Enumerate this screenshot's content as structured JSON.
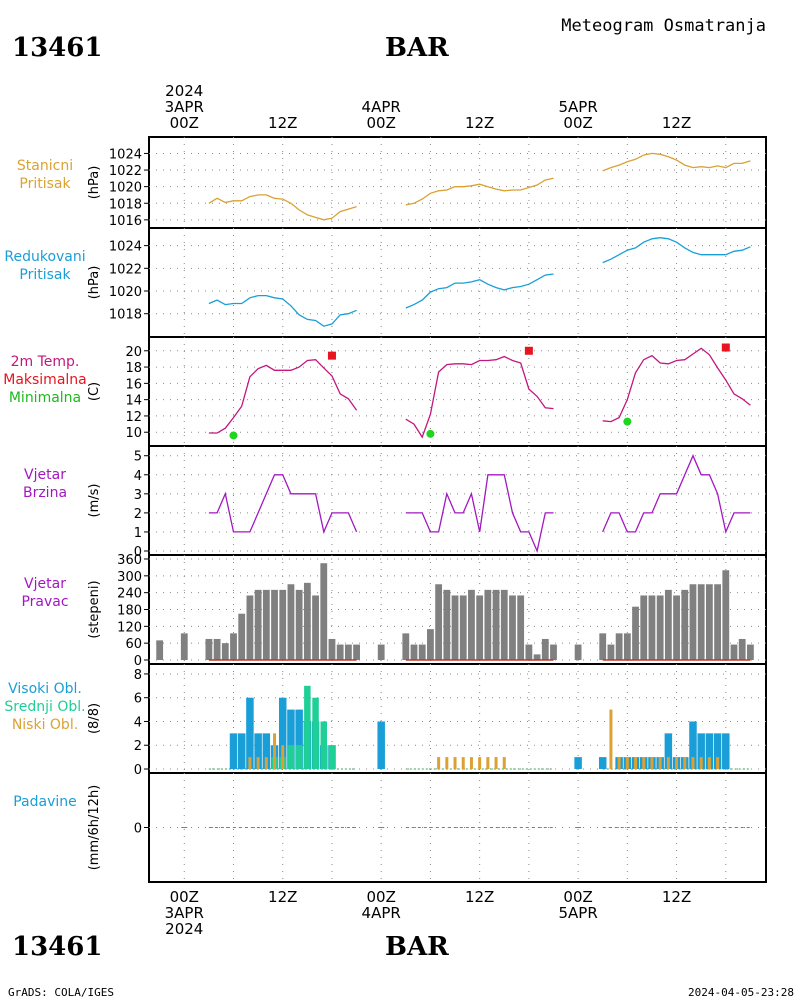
{
  "header": {
    "station_id": "13461",
    "station_name": "BAR",
    "product_title": "Meteogram Osmatranja",
    "footer_station_id": "13461",
    "footer_station_name": "BAR",
    "credit": "GrADS: COLA/IGES",
    "timestamp": "2024-04-05-23:28"
  },
  "colors": {
    "pressure_station": "#d9a233",
    "pressure_reduced": "#1a9ed8",
    "temp": "#c2177e",
    "temp_max": "#e8141f",
    "temp_min": "#1fd61f",
    "wind_speed": "#a317c2",
    "wind_dir": "#808080",
    "cloud_high": "#1a9ed8",
    "cloud_mid": "#1fcf96",
    "cloud_low": "#dca133",
    "precip": "#1a9ed8",
    "grid": "#8a8a8a"
  },
  "time_axis": {
    "top_labels": [
      {
        "t": 0,
        "lines": [
          "2024",
          "3APR",
          "00Z"
        ]
      },
      {
        "t": 12,
        "lines": [
          "12Z"
        ]
      },
      {
        "t": 24,
        "lines": [
          "4APR",
          "00Z"
        ]
      },
      {
        "t": 36,
        "lines": [
          "12Z"
        ]
      },
      {
        "t": 48,
        "lines": [
          "5APR",
          "00Z"
        ]
      },
      {
        "t": 60,
        "lines": [
          "12Z"
        ]
      }
    ],
    "bottom_labels": [
      {
        "t": 0,
        "lines": [
          "00Z",
          "3APR",
          "2024"
        ]
      },
      {
        "t": 12,
        "lines": [
          "12Z"
        ]
      },
      {
        "t": 24,
        "lines": [
          "00Z",
          "4APR"
        ]
      },
      {
        "t": 36,
        "lines": [
          "12Z"
        ]
      },
      {
        "t": 48,
        "lines": [
          "00Z",
          "5APR"
        ]
      },
      {
        "t": 60,
        "lines": [
          "12Z"
        ]
      }
    ]
  },
  "panels": [
    {
      "key": "station_pressure",
      "label": [
        "Stanicni",
        "Pritisak"
      ],
      "label_color": "#d9a233",
      "unit": "(hPa)"
    },
    {
      "key": "reduced_pressure",
      "label": [
        "Redukovani",
        "Pritisak"
      ],
      "label_color": "#1a9ed8",
      "unit": "(hPa)"
    },
    {
      "key": "temperature",
      "label": [
        "2m Temp.",
        "Maksimalna",
        "Minimalna"
      ],
      "label_colors": [
        "#c2177e",
        "#e8141f",
        "#1fb81f"
      ],
      "unit": "(C)"
    },
    {
      "key": "wind_speed",
      "label": [
        "Vjetar",
        "Brzina"
      ],
      "label_color": "#a317c2",
      "unit": "(m/s)"
    },
    {
      "key": "wind_direction",
      "label": [
        "Vjetar",
        "Pravac"
      ],
      "label_color": "#a317c2",
      "unit": "(stepeni)"
    },
    {
      "key": "clouds",
      "label": [
        "Visoki Obl.",
        "Srednji Obl.",
        "Niski Obl."
      ],
      "label_colors": [
        "#1a9ed8",
        "#1fcf96",
        "#dca133"
      ],
      "unit": "(8/8)"
    },
    {
      "key": "precipitation",
      "label": [
        "Padavine"
      ],
      "label_color": "#1a9ed8",
      "unit": "(mm/6h/12h)"
    }
  ],
  "chart_data": [
    {
      "type": "line",
      "id": "station_pressure",
      "x_unit": "hours since 2024-04-03 00Z",
      "ylabel": "(hPa)",
      "ylim": [
        1015.5,
        1025.5
      ],
      "yticks": [
        1016,
        1018,
        1020,
        1022,
        1024
      ],
      "segments": [
        {
          "x": [
            3,
            4,
            5,
            6,
            7,
            8,
            9,
            10,
            11,
            12,
            13,
            14,
            15,
            16,
            17,
            18,
            19,
            20,
            21
          ],
          "y": [
            1018.0,
            1018.6,
            1018.1,
            1018.3,
            1018.3,
            1018.8,
            1019.0,
            1019.0,
            1018.6,
            1018.5,
            1018.0,
            1017.2,
            1016.6,
            1016.3,
            1016.0,
            1016.2,
            1017.0,
            1017.3,
            1017.6
          ]
        },
        {
          "x": [
            27,
            28,
            29,
            30,
            31,
            32,
            33,
            34,
            35,
            36,
            37,
            38,
            39,
            40,
            41,
            42,
            43,
            44,
            45
          ],
          "y": [
            1017.8,
            1018.0,
            1018.5,
            1019.2,
            1019.5,
            1019.6,
            1020.0,
            1020.0,
            1020.1,
            1020.3,
            1020.0,
            1019.7,
            1019.5,
            1019.6,
            1019.6,
            1019.9,
            1020.2,
            1020.8,
            1021.0
          ]
        },
        {
          "x": [
            51,
            52,
            53,
            54,
            55,
            56,
            57,
            58,
            59,
            60,
            61,
            62,
            63,
            64,
            65,
            66,
            67,
            68,
            69
          ],
          "y": [
            1021.9,
            1022.3,
            1022.6,
            1023.0,
            1023.3,
            1023.8,
            1024.0,
            1023.9,
            1023.6,
            1023.2,
            1022.6,
            1022.3,
            1022.4,
            1022.3,
            1022.5,
            1022.3,
            1022.8,
            1022.8,
            1023.1
          ]
        }
      ]
    },
    {
      "type": "line",
      "id": "reduced_pressure",
      "x_unit": "hours since 2024-04-03 00Z",
      "ylabel": "(hPa)",
      "ylim": [
        1016.3,
        1025.2
      ],
      "yticks": [
        1018,
        1020,
        1022,
        1024
      ],
      "segments": [
        {
          "x": [
            3,
            4,
            5,
            6,
            7,
            8,
            9,
            10,
            11,
            12,
            13,
            14,
            15,
            16,
            17,
            18,
            19,
            20,
            21
          ],
          "y": [
            1018.9,
            1019.2,
            1018.8,
            1018.9,
            1018.9,
            1019.4,
            1019.6,
            1019.6,
            1019.4,
            1019.3,
            1018.7,
            1017.9,
            1017.5,
            1017.4,
            1016.9,
            1017.1,
            1017.9,
            1018.0,
            1018.3
          ]
        },
        {
          "x": [
            27,
            28,
            29,
            30,
            31,
            32,
            33,
            34,
            35,
            36,
            37,
            38,
            39,
            40,
            41,
            42,
            43,
            44,
            45
          ],
          "y": [
            1018.5,
            1018.8,
            1019.2,
            1019.9,
            1020.2,
            1020.3,
            1020.7,
            1020.7,
            1020.8,
            1021.0,
            1020.6,
            1020.3,
            1020.1,
            1020.3,
            1020.4,
            1020.6,
            1021.0,
            1021.4,
            1021.5
          ]
        },
        {
          "x": [
            51,
            52,
            53,
            54,
            55,
            56,
            57,
            58,
            59,
            60,
            61,
            62,
            63,
            64,
            65,
            66,
            67,
            68,
            69
          ],
          "y": [
            1022.5,
            1022.8,
            1023.2,
            1023.6,
            1023.8,
            1024.3,
            1024.6,
            1024.7,
            1024.6,
            1024.3,
            1023.8,
            1023.4,
            1023.2,
            1023.2,
            1023.2,
            1023.2,
            1023.5,
            1023.6,
            1023.9
          ]
        }
      ]
    },
    {
      "type": "line",
      "id": "temperature",
      "x_unit": "hours since 2024-04-03 00Z",
      "ylabel": "(C)",
      "ylim": [
        8.8,
        21.2
      ],
      "yticks": [
        10,
        12,
        14,
        16,
        18,
        20
      ],
      "segments": [
        {
          "x": [
            3,
            4,
            5,
            6,
            7,
            8,
            9,
            10,
            11,
            12,
            13,
            14,
            15,
            16,
            17,
            18,
            19,
            20,
            21
          ],
          "y": [
            9.9,
            9.9,
            10.5,
            11.8,
            13.2,
            16.8,
            17.8,
            18.2,
            17.6,
            17.6,
            17.6,
            18.0,
            18.8,
            18.9,
            17.9,
            16.9,
            14.7,
            14.1,
            12.7
          ]
        },
        {
          "x": [
            27,
            28,
            29,
            30,
            31,
            32,
            33,
            34,
            35,
            36,
            37,
            38,
            39,
            40,
            41,
            42,
            43,
            44,
            45
          ],
          "y": [
            11.6,
            11.0,
            9.4,
            12.2,
            17.4,
            18.3,
            18.4,
            18.4,
            18.3,
            18.8,
            18.8,
            18.9,
            19.3,
            18.8,
            18.5,
            15.3,
            14.4,
            13.0,
            12.9
          ]
        },
        {
          "x": [
            51,
            52,
            53,
            54,
            55,
            56,
            57,
            58,
            59,
            60,
            61,
            62,
            63,
            64,
            65,
            66,
            67,
            68,
            69
          ],
          "y": [
            11.4,
            11.3,
            11.8,
            14.0,
            17.3,
            18.9,
            19.4,
            18.5,
            18.4,
            18.8,
            18.9,
            19.6,
            20.3,
            19.5,
            17.9,
            16.4,
            14.7,
            14.1,
            13.3
          ]
        }
      ],
      "max_markers": {
        "x": [
          18,
          42,
          66
        ],
        "y": [
          19.4,
          20.0,
          20.4
        ]
      },
      "min_markers": {
        "x": [
          6,
          30,
          54
        ],
        "y": [
          9.6,
          9.8,
          11.3
        ]
      }
    },
    {
      "type": "line",
      "id": "wind_speed",
      "x_unit": "hours since 2024-04-03 00Z",
      "ylabel": "(m/s)",
      "ylim": [
        0,
        5.3
      ],
      "yticks": [
        0,
        1,
        2,
        3,
        4,
        5
      ],
      "segments": [
        {
          "x": [
            3,
            4,
            5,
            6,
            7,
            8,
            9,
            10,
            11,
            12,
            13,
            14,
            15,
            16,
            17,
            18,
            19,
            20,
            21
          ],
          "y": [
            2,
            2,
            3,
            1,
            1,
            1,
            2,
            3,
            4,
            4,
            3,
            3,
            3,
            3,
            1,
            2,
            2,
            2,
            1
          ]
        },
        {
          "x": [
            27,
            28,
            29,
            30,
            31,
            32,
            33,
            34,
            35,
            36,
            37,
            38,
            39,
            40,
            41,
            42,
            43,
            44,
            45
          ],
          "y": [
            2,
            2,
            2,
            1,
            1,
            3,
            2,
            2,
            3,
            1,
            4,
            4,
            4,
            2,
            1,
            1,
            0,
            2,
            2
          ]
        },
        {
          "x": [
            51,
            52,
            53,
            54,
            55,
            56,
            57,
            58,
            59,
            60,
            61,
            62,
            63,
            64,
            65,
            66,
            67,
            68,
            69
          ],
          "y": [
            1,
            2,
            2,
            1,
            1,
            2,
            2,
            3,
            3,
            3,
            4,
            5,
            4,
            4,
            3,
            1,
            2,
            2,
            2
          ]
        }
      ]
    },
    {
      "type": "bar",
      "id": "wind_direction",
      "x_unit": "hours since 2024-04-03 00Z",
      "ylabel": "(stepeni)",
      "ylim": [
        0,
        360
      ],
      "yticks": [
        0,
        60,
        120,
        180,
        240,
        300,
        360
      ],
      "x": [
        -3,
        0,
        3,
        4,
        5,
        6,
        7,
        8,
        9,
        10,
        11,
        12,
        13,
        14,
        15,
        16,
        17,
        18,
        19,
        20,
        21,
        24,
        27,
        28,
        29,
        30,
        31,
        32,
        33,
        34,
        35,
        36,
        37,
        38,
        39,
        40,
        41,
        42,
        43,
        44,
        45,
        48,
        51,
        52,
        53,
        54,
        55,
        56,
        57,
        58,
        59,
        60,
        61,
        62,
        63,
        64,
        65,
        66,
        67,
        68,
        69
      ],
      "values": [
        70,
        95,
        75,
        75,
        60,
        95,
        165,
        230,
        250,
        250,
        250,
        250,
        270,
        250,
        275,
        230,
        345,
        75,
        55,
        55,
        55,
        55,
        95,
        55,
        55,
        110,
        270,
        250,
        230,
        230,
        250,
        230,
        250,
        250,
        250,
        230,
        230,
        55,
        20,
        75,
        55,
        55,
        95,
        55,
        95,
        95,
        190,
        230,
        230,
        230,
        250,
        230,
        250,
        270,
        270,
        270,
        270,
        320,
        55,
        75,
        55
      ],
      "baseline_segments": [
        [
          3,
          21
        ],
        [
          27,
          45
        ],
        [
          51,
          69
        ]
      ]
    },
    {
      "type": "bar",
      "id": "clouds",
      "x_unit": "hours since 2024-04-03 00Z",
      "ylabel": "(8/8)",
      "ylim": [
        0,
        8.5
      ],
      "yticks": [
        0,
        2,
        4,
        6,
        8
      ],
      "series": [
        {
          "name": "Visoki Obl.",
          "x": [
            6,
            7,
            8,
            9,
            10,
            11,
            12,
            13,
            14,
            15,
            16,
            17,
            18,
            24,
            48,
            51,
            53,
            54,
            55,
            56,
            57,
            58,
            59,
            60,
            61,
            62,
            63,
            64,
            65,
            66
          ],
          "values": [
            3,
            3,
            6,
            3,
            3,
            2,
            6,
            5,
            5,
            4,
            4,
            2,
            2,
            4,
            1,
            1,
            1,
            1,
            1,
            1,
            1,
            1,
            3,
            1,
            1,
            4,
            3,
            3,
            3,
            3
          ]
        },
        {
          "name": "Srednji Obl.",
          "x": [
            11,
            12,
            13,
            14,
            15,
            16,
            17,
            18
          ],
          "values": [
            1,
            1,
            2,
            2,
            7,
            6,
            4,
            2
          ]
        },
        {
          "name": "Niski Obl.",
          "x": [
            8,
            9,
            10,
            11,
            12,
            31,
            32,
            33,
            34,
            35,
            36,
            37,
            38,
            39,
            52,
            53,
            54,
            55,
            56,
            57,
            58,
            59,
            60,
            61,
            62,
            63,
            64,
            65
          ],
          "values": [
            1,
            1,
            1,
            3,
            2,
            1,
            1,
            1,
            1,
            1,
            1,
            1,
            1,
            1,
            5,
            1,
            1,
            1,
            1,
            1,
            1,
            1,
            1,
            1,
            1,
            1,
            1,
            1
          ]
        }
      ],
      "baseline_segments": [
        [
          3,
          21
        ],
        [
          27,
          45
        ],
        [
          51,
          69
        ]
      ]
    },
    {
      "type": "line",
      "id": "precipitation",
      "x_unit": "hours since 2024-04-03 00Z",
      "ylabel": "(mm/6h/12h)",
      "ylim": [
        -1,
        1
      ],
      "yticks": [
        0
      ],
      "segments": [
        {
          "x": [
            3,
            21
          ],
          "y": [
            0,
            0
          ]
        },
        {
          "x": [
            27,
            45
          ],
          "y": [
            0,
            0
          ]
        },
        {
          "x": [
            51,
            69
          ],
          "y": [
            0,
            0
          ]
        }
      ]
    }
  ]
}
